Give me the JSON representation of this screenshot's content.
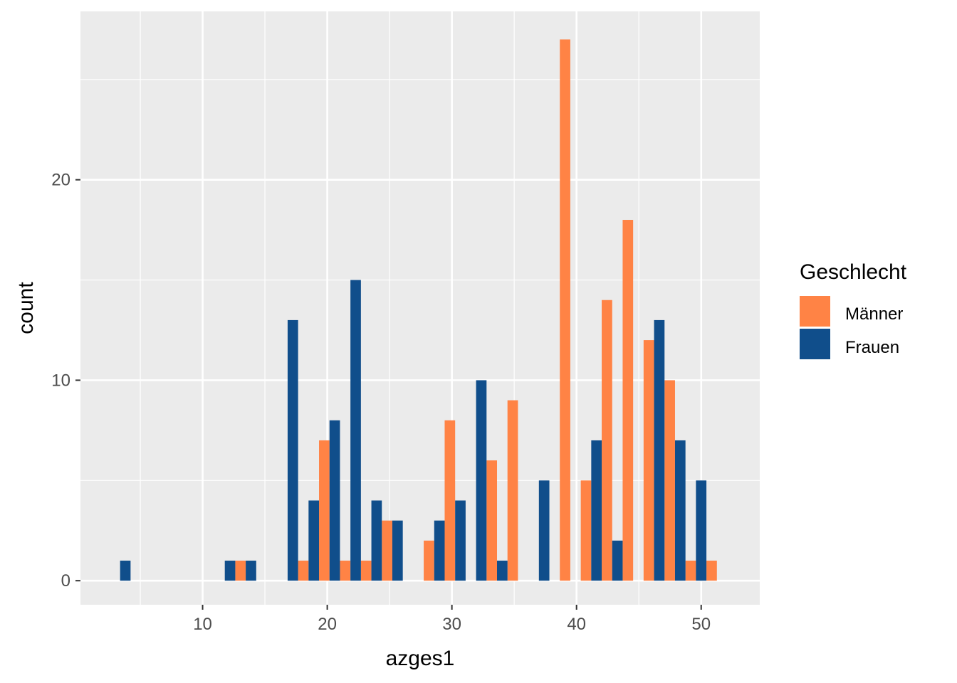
{
  "chart_data": {
    "type": "bar",
    "xlabel": "azges1",
    "ylabel": "count",
    "xlim": [
      0.2,
      54.7
    ],
    "ylim": [
      -1.2,
      28.4
    ],
    "x_ticks": [
      10,
      20,
      30,
      40,
      50
    ],
    "y_ticks": [
      0,
      10,
      20
    ],
    "grid": true,
    "legend": {
      "title": "Geschlecht",
      "position": "right"
    },
    "bin_centers": [
      3.38,
      11.78,
      13.46,
      16.82,
      18.5,
      20.18,
      21.86,
      23.54,
      25.22,
      28.58,
      30.26,
      31.94,
      33.62,
      35.3,
      36.98,
      39.5,
      41.18,
      42.86,
      44.54,
      46.22,
      47.9,
      49.58,
      51.26
    ],
    "series": [
      {
        "name": "Männer",
        "color": "#FF8345",
        "values": [
          0,
          0,
          1,
          0,
          1,
          7,
          1,
          1,
          3,
          2,
          8,
          0,
          6,
          9,
          0,
          27,
          5,
          14,
          18,
          12,
          10,
          1,
          1
        ]
      },
      {
        "name": "Frauen",
        "color": "#104E8B",
        "values": [
          1,
          1,
          1,
          13,
          4,
          8,
          15,
          4,
          3,
          3,
          4,
          10,
          1,
          0,
          5,
          0,
          7,
          2,
          0,
          13,
          7,
          5,
          0
        ]
      }
    ]
  }
}
